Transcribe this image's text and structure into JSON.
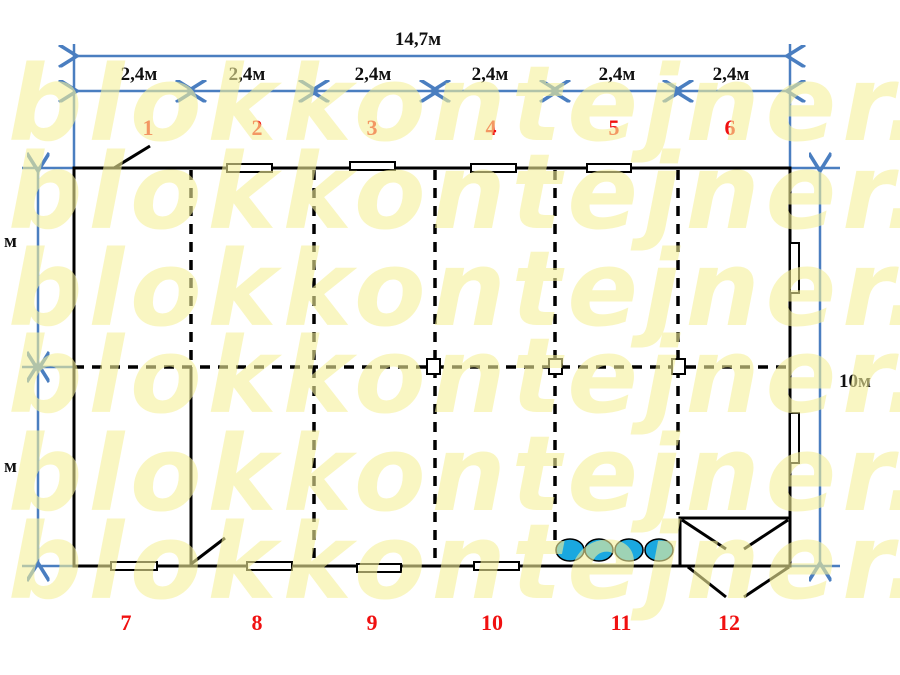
{
  "dimensions": {
    "total_width": "14,7м",
    "section_width": "2,4м",
    "sections": [
      "2,4м",
      "2,4м",
      "2,4м",
      "2,4м",
      "2,4м",
      "2,4м"
    ],
    "total_depth": "10м",
    "left_partial_labels": [
      "м",
      "м"
    ]
  },
  "rooms_top": [
    "1",
    "2",
    "3",
    "4",
    "5",
    "6"
  ],
  "rooms_bottom": [
    "7",
    "8",
    "9",
    "10",
    "11",
    "12"
  ],
  "watermark": "blokkontejner.ru",
  "colors": {
    "walls": "#000000",
    "dimension_lines": "#4a7ec0",
    "room_numbers": "#f01010",
    "radiators": "#1aa8e0",
    "watermark": "#f6f19a"
  }
}
